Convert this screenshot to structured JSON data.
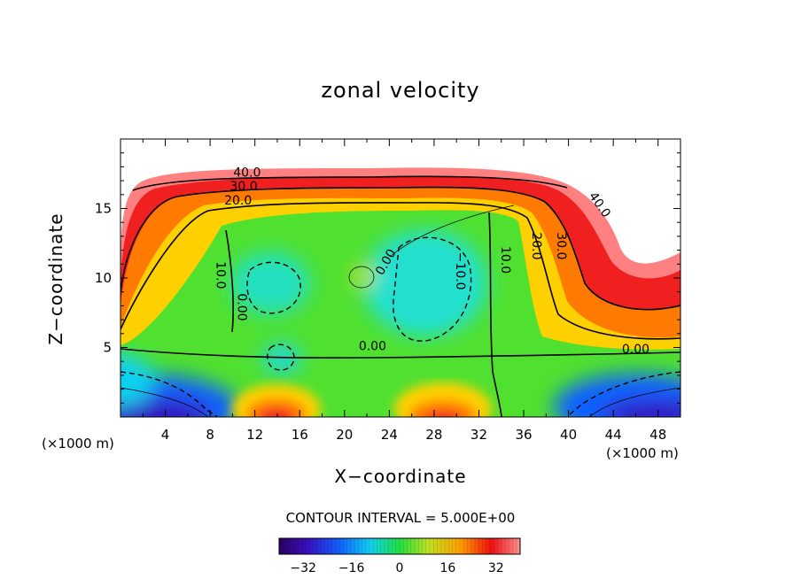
{
  "chart_data": {
    "type": "contour",
    "title": "zonal velocity",
    "xlabel": "X−coordinate",
    "ylabel": "Z−coordinate",
    "x_unit_left": "(×1000 m)",
    "x_unit_right": "(×1000 m)",
    "xlim": [
      0,
      50
    ],
    "ylim": [
      0,
      20
    ],
    "x_ticks": [
      4,
      8,
      12,
      16,
      20,
      24,
      28,
      32,
      36,
      40,
      44,
      48
    ],
    "y_ticks": [
      5,
      10,
      15
    ],
    "contour_interval_text": "CONTOUR INTERVAL = 5.000E+00",
    "contour_labels": [
      {
        "text": "40.0",
        "x": 11.3,
        "z": 17.3
      },
      {
        "text": "30.0",
        "x": 11.0,
        "z": 16.3
      },
      {
        "text": "20.0",
        "x": 10.5,
        "z": 15.3
      },
      {
        "text": "10.0",
        "x": 8.6,
        "z": 10.2
      },
      {
        "text": "0.00",
        "x": 10.5,
        "z": 7.9
      },
      {
        "text": "0.00",
        "x": 24.0,
        "z": 11.0
      },
      {
        "text": "−10.0",
        "x": 30.0,
        "z": 10.5
      },
      {
        "text": "10.0",
        "x": 34.0,
        "z": 11.3
      },
      {
        "text": "20.0",
        "x": 36.8,
        "z": 12.3
      },
      {
        "text": "30.0",
        "x": 39.0,
        "z": 12.3
      },
      {
        "text": "40.0",
        "x": 42.5,
        "z": 15.1
      },
      {
        "text": "0.00",
        "x": 22.5,
        "z": 4.8
      },
      {
        "text": "0.00",
        "x": 46.0,
        "z": 4.6
      }
    ],
    "colorbar": {
      "min": -40,
      "max": 40,
      "ticks": [
        -32,
        -16,
        0,
        16,
        32
      ],
      "tick_labels": [
        "−32",
        "−16",
        "0",
        "16",
        "32"
      ]
    }
  },
  "colors": {
    "axis": "#000000",
    "background": "#ffffff"
  }
}
